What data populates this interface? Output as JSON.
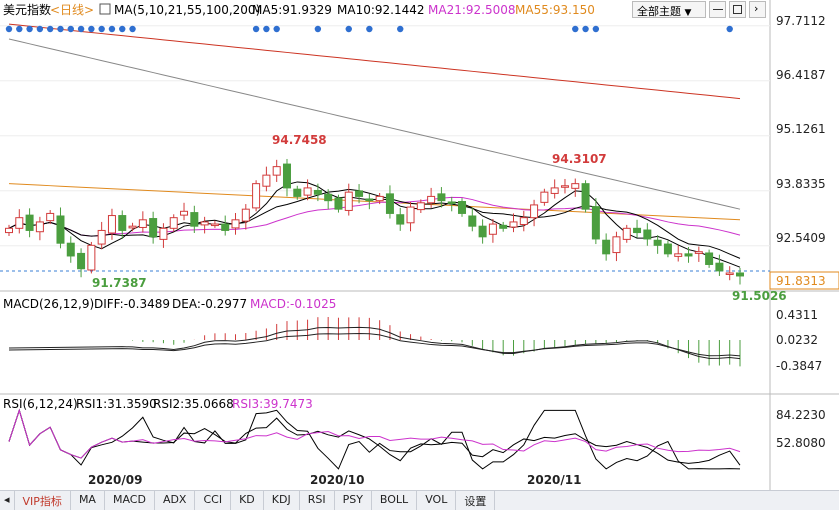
{
  "colors": {
    "up": "#d23b3b",
    "down": "#4b9e3f",
    "ma5": "#000000",
    "ma10": "#000000",
    "ma21": "#cc33cc",
    "ma55": "#e08a1e",
    "ma100": "#888888",
    "ma200": "#cc3322",
    "dea": "#222222",
    "rsi3": "#cc33cc"
  },
  "header": {
    "symbol": "美元指数",
    "period": "<日线>",
    "ma_title": "MA(5,10,21,55,100,200)",
    "ma5": "MA5:91.9329",
    "ma10": "MA10:92.1442",
    "ma21": "MA21:92.5008",
    "ma55": "MA55:93.150",
    "theme_button": "全部主题",
    "theme_icon": "dropdown-arrow-icon"
  },
  "macd_header": {
    "title": "MACD(26,12,9)",
    "diff": "DIFF:-0.3489",
    "dea": "DEA:-0.2977",
    "macd": "MACD:-0.1025"
  },
  "rsi_header": {
    "title": "RSI(6,12,24)",
    "rsi1": "RSI1:31.3590",
    "rsi2": "RSI2:35.0668",
    "rsi3": "RSI3:39.7473"
  },
  "tabs": [
    "VIP指标",
    "MA",
    "MACD",
    "ADX",
    "CCI",
    "KD",
    "KDJ",
    "RSI",
    "PSY",
    "BOLL",
    "VOL",
    "设置"
  ],
  "chart_data": [
    {
      "type": "candlestick",
      "title": "美元指数",
      "ylim": [
        91.5,
        97.8
      ],
      "y_ticks": [
        "97.7112",
        "96.4187",
        "95.1261",
        "93.8335",
        "92.5409"
      ],
      "x_ticks": [
        "2020/09",
        "2020/10",
        "2020/11"
      ],
      "last_price": "91.8313",
      "annotations": [
        "94.7458",
        "91.7387",
        "94.3107",
        "91.5026"
      ],
      "closes": [
        92.95,
        93.2,
        92.9,
        93.1,
        93.3,
        92.6,
        92.3,
        92.0,
        92.55,
        92.9,
        93.25,
        92.9,
        93.0,
        93.15,
        92.75,
        92.95,
        93.2,
        93.35,
        93.0,
        93.1,
        93.05,
        92.9,
        93.15,
        93.4,
        94.0,
        94.2,
        94.4,
        93.9,
        93.7,
        93.9,
        93.75,
        93.6,
        93.4,
        93.8,
        93.7,
        93.6,
        93.7,
        93.3,
        93.05,
        93.45,
        93.55,
        93.7,
        93.6,
        93.55,
        93.3,
        93.0,
        92.75,
        93.05,
        92.95,
        93.1,
        93.2,
        93.5,
        93.8,
        93.9,
        93.95,
        94.0,
        93.4,
        92.7,
        92.35,
        92.75,
        92.95,
        92.85,
        92.7,
        92.55,
        92.35,
        92.35,
        92.3,
        92.4,
        92.1,
        91.95,
        91.9,
        91.83
      ],
      "ma_levels": {
        "ma55_start": 94.0,
        "ma55_end": 93.15,
        "ma100_start": 97.4,
        "ma100_end": 93.4,
        "ma200_start": 97.75,
        "ma200_end": 96.0
      }
    },
    {
      "type": "bar",
      "title": "MACD(26,12,9)",
      "y_ticks": [
        "0.4311",
        "0.0232",
        "-0.3847"
      ],
      "series": [
        {
          "name": "DIFF"
        },
        {
          "name": "DEA"
        },
        {
          "name": "MACD"
        }
      ]
    },
    {
      "type": "line",
      "title": "RSI(6,12,24)",
      "y_ticks": [
        "84.2230",
        "52.8080"
      ],
      "series": [
        {
          "name": "RSI1"
        },
        {
          "name": "RSI2"
        },
        {
          "name": "RSI3"
        }
      ]
    }
  ]
}
